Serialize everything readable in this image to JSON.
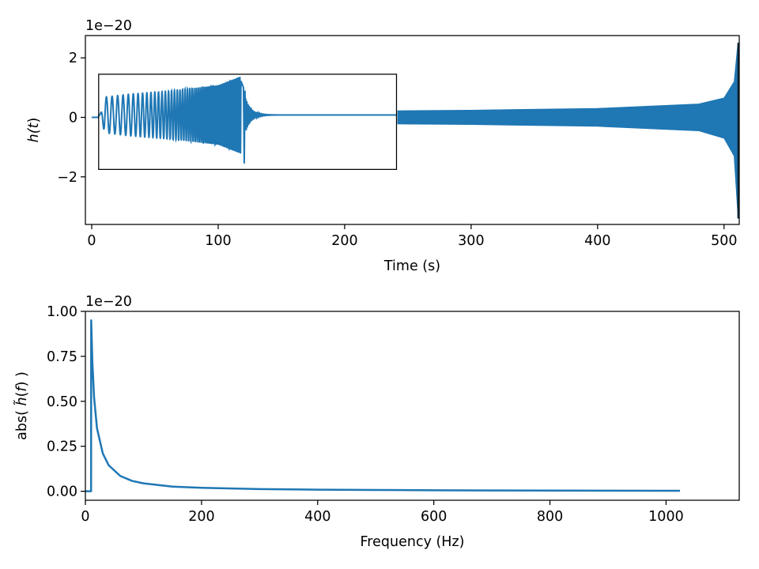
{
  "colors": {
    "series": "#1f77b4",
    "axes": "#000000",
    "background": "#ffffff"
  },
  "chart_data": [
    {
      "type": "line",
      "title": "",
      "xlabel": "Time (s)",
      "ylabel_parts": [
        "h(",
        "t",
        ")"
      ],
      "offset_text": "1e−20",
      "xlim": [
        -5,
        512
      ],
      "ylim": [
        -3.6,
        2.75
      ],
      "xticks": [
        0,
        100,
        200,
        300,
        400,
        500
      ],
      "xtick_labels": [
        "0",
        "100",
        "200",
        "300",
        "400",
        "500"
      ],
      "yticks": [
        -2,
        0,
        2
      ],
      "ytick_labels": [
        "−2",
        "0",
        "2"
      ],
      "series": [
        {
          "description_points": {
            "x": [
              0,
              5,
              10,
              30,
              60,
              100,
              118,
              121,
              124,
              135,
              150,
              241
            ],
            "y": [
              0.0,
              0.0,
              0.6,
              0.7,
              0.8,
              1.0,
              1.3,
              -1.6,
              0.8,
              0.2,
              0.05,
              0.05
            ]
          },
          "envelope": {
            "x": [
              242,
              300,
              400,
              480,
              500,
              508,
              511,
              512
            ],
            "y_upper": [
              0.22,
              0.24,
              0.3,
              0.45,
              0.65,
              1.2,
              2.5,
              2.5
            ],
            "y_lower": [
              -0.22,
              -0.24,
              -0.3,
              -0.45,
              -0.7,
              -1.3,
              -3.3,
              -3.3
            ]
          }
        }
      ],
      "inset_box": {
        "x": [
          5.5,
          241
        ],
        "y": [
          -1.75,
          1.45
        ]
      }
    },
    {
      "type": "line",
      "title": "",
      "xlabel": "Frequency (Hz)",
      "ylabel_parts": [
        "abs( ",
        "h̃",
        "(",
        "f",
        ") )"
      ],
      "offset_text": "1e−20",
      "xlim": [
        0,
        1126
      ],
      "ylim": [
        -0.05,
        1.0
      ],
      "xticks": [
        0,
        200,
        400,
        600,
        800,
        1000
      ],
      "xtick_labels": [
        "0",
        "200",
        "400",
        "600",
        "800",
        "1000"
      ],
      "yticks": [
        0.0,
        0.25,
        0.5,
        0.75,
        1.0
      ],
      "ytick_labels": [
        "0.00",
        "0.25",
        "0.50",
        "0.75",
        "1.00"
      ],
      "series": [
        {
          "x": [
            0,
            9.8,
            10,
            12,
            15,
            20,
            30,
            40,
            60,
            80,
            100,
            150,
            200,
            300,
            400,
            500,
            600,
            700,
            800,
            900,
            1000,
            1024
          ],
          "y": [
            0.0,
            0.0,
            0.95,
            0.72,
            0.52,
            0.35,
            0.21,
            0.145,
            0.085,
            0.058,
            0.044,
            0.026,
            0.019,
            0.012,
            0.009,
            0.007,
            0.0055,
            0.0045,
            0.0038,
            0.0032,
            0.0028,
            0.0027
          ]
        }
      ]
    }
  ]
}
